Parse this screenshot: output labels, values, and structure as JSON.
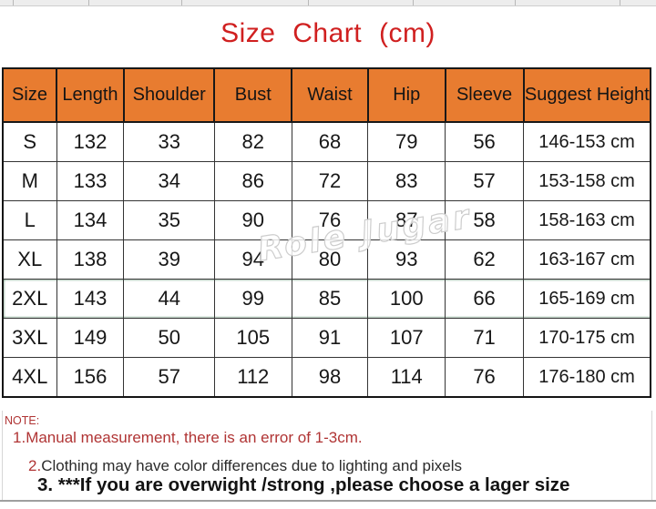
{
  "title": "Size Chart (cm)",
  "watermark": "Role Jugar",
  "chart_data": {
    "type": "table",
    "title": "Size Chart (cm)",
    "units": "cm",
    "columns": [
      "Size",
      "Length",
      "Shoulder",
      "Bust",
      "Waist",
      "Hip",
      "Sleeve",
      "Suggest Height"
    ],
    "rows": [
      [
        "S",
        "132",
        "33",
        "82",
        "68",
        "79",
        "56",
        "146-153 cm"
      ],
      [
        "M",
        "133",
        "34",
        "86",
        "72",
        "83",
        "57",
        "153-158 cm"
      ],
      [
        "L",
        "134",
        "35",
        "90",
        "76",
        "87",
        "58",
        "158-163 cm"
      ],
      [
        "XL",
        "138",
        "39",
        "94",
        "80",
        "93",
        "62",
        "163-167 cm"
      ],
      [
        "2XL",
        "143",
        "44",
        "99",
        "85",
        "100",
        "66",
        "165-169 cm"
      ],
      [
        "3XL",
        "149",
        "50",
        "105",
        "91",
        "107",
        "71",
        "170-175 cm"
      ],
      [
        "4XL",
        "156",
        "57",
        "112",
        "98",
        "114",
        "76",
        "176-180 cm"
      ]
    ],
    "outlined_row": "2XL"
  },
  "notes": {
    "label": "NOTE:",
    "line1": {
      "num": "1.",
      "text": "Manual measurement, there is an error of 1-3cm."
    },
    "line2": {
      "num": "2.",
      "text": "Clothing may have color differences due to lighting and pixels"
    },
    "line3": {
      "num": "3.",
      "text": " ***If you are overwight /strong ,please choose a lager size"
    }
  },
  "colors": {
    "header_bg": "#E87C30",
    "title": "#D02020",
    "note_red": "#B03434",
    "border": "#141414"
  }
}
